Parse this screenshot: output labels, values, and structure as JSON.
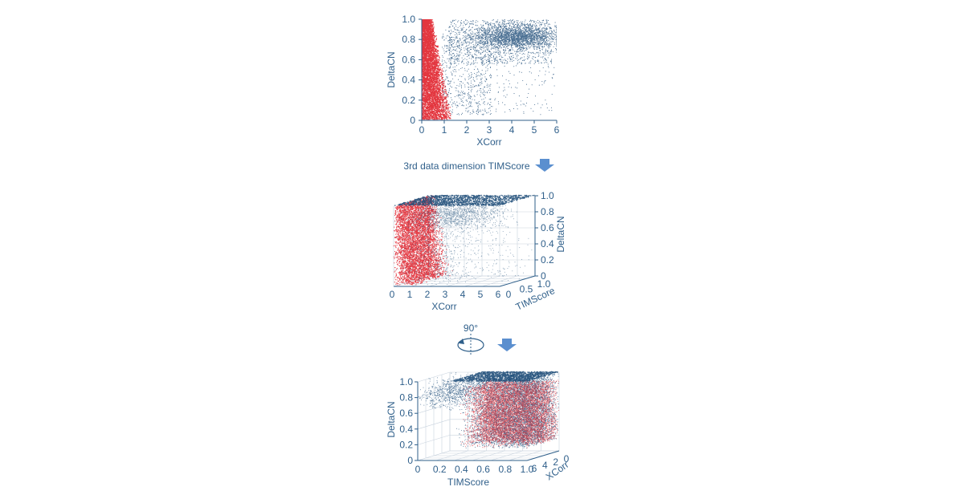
{
  "colors": {
    "red_series": "#e0202a",
    "blue_series": "#1f4e79",
    "axis": "#2f5f8a",
    "arrow": "#5b8fcf"
  },
  "captions": {
    "step1": "3rd data dimension TIMScore",
    "rotation": "90°"
  },
  "icons": [
    "down-arrow-icon",
    "rotate-icon",
    "down-arrow-icon"
  ],
  "chart_data": [
    {
      "type": "scatter",
      "title": "",
      "xlabel": "XCorr",
      "ylabel": "DeltaCN",
      "xlim": [
        0,
        6
      ],
      "ylim": [
        0,
        1.0
      ],
      "xticks": [
        "0",
        "1",
        "2",
        "3",
        "4",
        "5",
        "6"
      ],
      "yticks": [
        "0",
        "0.2",
        "0.4",
        "0.6",
        "0.8",
        "1.0"
      ],
      "series": [
        {
          "color": "red",
          "region": {
            "x": [
              0,
              1.4
            ],
            "y": [
              0,
              1.0
            ]
          }
        },
        {
          "color": "blue",
          "region": {
            "x": [
              0.5,
              6
            ],
            "y": [
              0.05,
              1.0
            ]
          },
          "densest_at": {
            "x": 5,
            "y": 0.85
          }
        }
      ]
    },
    {
      "type": "scatter",
      "projection": "3d",
      "title": "",
      "xlabel": "XCorr",
      "ylabel": "TIMScore",
      "zlabel": "DeltaCN",
      "xlim": [
        0,
        6
      ],
      "ylim": [
        0,
        1.0
      ],
      "zlim": [
        0,
        1.0
      ],
      "xticks": [
        "0",
        "1",
        "2",
        "3",
        "4",
        "5",
        "6"
      ],
      "yticks": [
        "0",
        "0.5",
        "1.0"
      ],
      "zticks": [
        "0",
        "0.2",
        "0.4",
        "0.6",
        "0.8",
        "1.0"
      ]
    },
    {
      "type": "scatter",
      "projection": "3d",
      "view_rotation_deg": 90,
      "title": "",
      "xlabel": "TIMScore",
      "ylabel": "XCorr",
      "zlabel": "DeltaCN",
      "xlim": [
        0,
        1.0
      ],
      "ylim": [
        0,
        6
      ],
      "zlim": [
        0,
        1.0
      ],
      "xticks": [
        "0",
        "0.2",
        "0.4",
        "0.6",
        "0.8",
        "1.0"
      ],
      "yticks": [
        "0",
        "2",
        "4",
        "6"
      ],
      "zticks": [
        "0",
        "0.2",
        "0.4",
        "0.6",
        "0.8",
        "1.0"
      ]
    }
  ]
}
